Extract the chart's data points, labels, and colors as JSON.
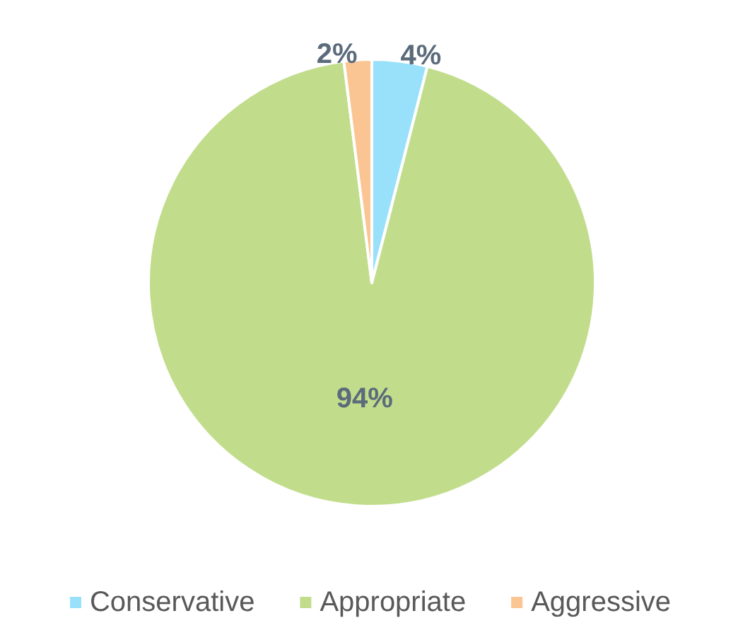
{
  "chart_data": {
    "type": "pie",
    "categories": [
      "Conservative",
      "Appropriate",
      "Aggressive"
    ],
    "values": [
      4,
      94,
      2
    ],
    "colors": [
      "#99e1fb",
      "#c1dd8c",
      "#fac592"
    ],
    "value_labels": [
      "4%",
      "94%",
      "2%"
    ],
    "legend": "bottom"
  }
}
